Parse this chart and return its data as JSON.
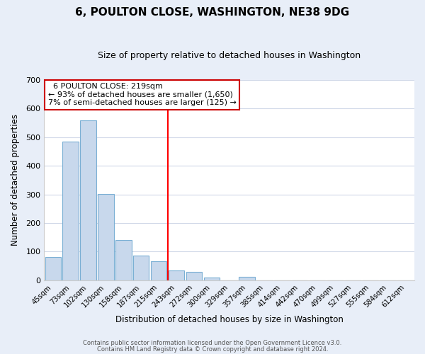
{
  "title": "6, POULTON CLOSE, WASHINGTON, NE38 9DG",
  "subtitle": "Size of property relative to detached houses in Washington",
  "xlabel": "Distribution of detached houses by size in Washington",
  "ylabel": "Number of detached properties",
  "bin_labels": [
    "45sqm",
    "73sqm",
    "102sqm",
    "130sqm",
    "158sqm",
    "187sqm",
    "215sqm",
    "243sqm",
    "272sqm",
    "300sqm",
    "329sqm",
    "357sqm",
    "385sqm",
    "414sqm",
    "442sqm",
    "470sqm",
    "499sqm",
    "527sqm",
    "555sqm",
    "584sqm",
    "612sqm"
  ],
  "bar_heights": [
    82,
    484,
    560,
    302,
    140,
    87,
    65,
    35,
    30,
    10,
    0,
    12,
    0,
    0,
    0,
    0,
    0,
    0,
    0,
    0,
    0
  ],
  "bar_color": "#c8d8ec",
  "bar_edgecolor": "#7aafd4",
  "vline_x": 6.5,
  "vline_label": "6 POULTON CLOSE: 219sqm",
  "annotation_line1": "← 93% of detached houses are smaller (1,650)",
  "annotation_line2": "7% of semi-detached houses are larger (125) →",
  "box_facecolor": "#ffffff",
  "box_edgecolor": "#cc0000",
  "ylim": [
    0,
    700
  ],
  "yticks": [
    0,
    100,
    200,
    300,
    400,
    500,
    600,
    700
  ],
  "footer1": "Contains HM Land Registry data © Crown copyright and database right 2024.",
  "footer2": "Contains public sector information licensed under the Open Government Licence v3.0.",
  "plot_bg_color": "#ffffff",
  "fig_bg_color": "#e8eef8",
  "grid_color": "#d0d8e8",
  "title_fontsize": 11,
  "subtitle_fontsize": 9
}
